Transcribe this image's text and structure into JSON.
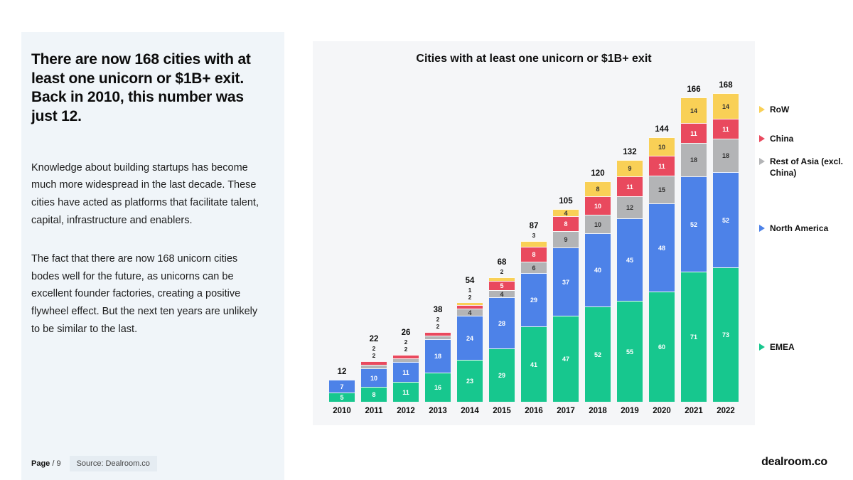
{
  "left_panel": {
    "heading": "There are now 168 cities with at least one unicorn or $1B+ exit. Back in 2010, this number was just 12.",
    "paragraph1": "Knowledge about building startups has become much more widespread in the last decade. These cities have acted as platforms that facilitate talent, capital, infrastructure and enablers.",
    "paragraph2": "The fact that there are now 168 unicorn cities bodes well for the future, as unicorns can be excellent founder factories, creating a positive flywheel effect. But the next ten years are unlikely to be similar to the last.",
    "footer": {
      "page_label": "Page",
      "page_number": "/ 9",
      "source": "Source: Dealroom.co"
    }
  },
  "brand": "dealroom.co",
  "chart_data": {
    "type": "bar",
    "stacked": true,
    "title": "Cities with at least one unicorn or $1B+ exit",
    "categories": [
      "2010",
      "2011",
      "2012",
      "2013",
      "2014",
      "2015",
      "2016",
      "2017",
      "2018",
      "2019",
      "2020",
      "2021",
      "2022"
    ],
    "series": [
      {
        "name": "EMEA",
        "color": "#17C78E",
        "label_color": "#ffffff",
        "values": [
          5,
          8,
          11,
          16,
          23,
          29,
          41,
          47,
          52,
          55,
          60,
          71,
          73
        ]
      },
      {
        "name": "North America",
        "color": "#4D82E8",
        "label_color": "#ffffff",
        "values": [
          7,
          10,
          11,
          18,
          24,
          28,
          29,
          37,
          40,
          45,
          48,
          52,
          52
        ]
      },
      {
        "name": "Rest of Asia (excl. China)",
        "color": "#B3B4B6",
        "label_color": "#333333",
        "values": [
          0,
          2,
          2,
          2,
          4,
          4,
          6,
          9,
          10,
          12,
          15,
          18,
          18
        ]
      },
      {
        "name": "China",
        "color": "#E9495E",
        "label_color": "#ffffff",
        "values": [
          0,
          2,
          2,
          2,
          2,
          5,
          8,
          8,
          10,
          11,
          11,
          11,
          11
        ]
      },
      {
        "name": "RoW",
        "color": "#F9D056",
        "label_color": "#333333",
        "values": [
          0,
          0,
          0,
          0,
          1,
          2,
          3,
          4,
          8,
          9,
          10,
          14,
          14
        ]
      }
    ],
    "totals": [
      12,
      22,
      26,
      38,
      54,
      68,
      87,
      105,
      120,
      132,
      144,
      166,
      168
    ],
    "ylim": [
      0,
      168
    ],
    "grid": false,
    "legend_position": "right",
    "xlabel": "",
    "ylabel": ""
  }
}
